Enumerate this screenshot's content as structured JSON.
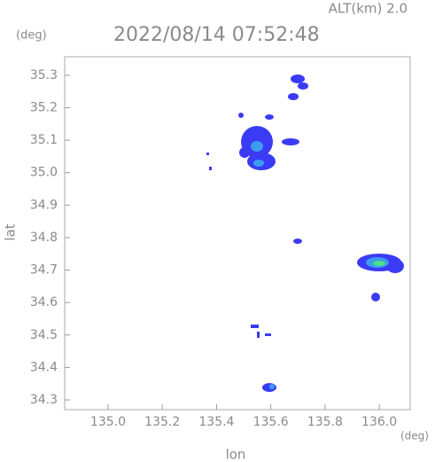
{
  "chart_data": {
    "type": "radar-map",
    "title": "2022/08/14 07:52:48",
    "subtitle": "ALT(km) 2.0",
    "y_unit": "(deg)",
    "x_unit": "(deg)",
    "xlabel": "lon",
    "ylabel": "lat",
    "xlim": [
      134.84,
      136.114
    ],
    "ylim": [
      34.27,
      35.357
    ],
    "xticks": [
      {
        "value": 135.0,
        "label": "135.0"
      },
      135.2,
      135.4,
      135.6,
      135.8,
      {
        "value": 136.0,
        "label": "136.0"
      }
    ],
    "yticks": [
      34.3,
      34.4,
      34.5,
      34.6,
      34.7,
      34.8,
      34.9,
      {
        "value": 35.0,
        "label": "35.0"
      },
      35.1,
      35.2,
      35.3
    ]
  }
}
